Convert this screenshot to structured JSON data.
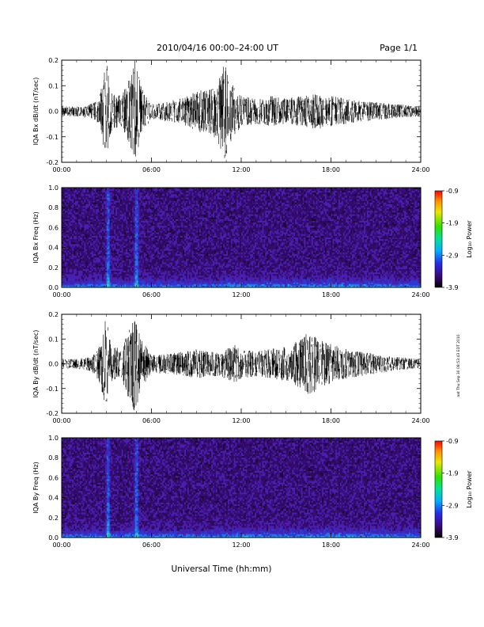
{
  "header": {
    "title": "2010/04/16  00:00–24:00 UT",
    "page": "Page 1/1"
  },
  "footer": {
    "xlabel": "Universal Time (hh:mm)"
  },
  "side_note": "aat Thu Sep 30 08:53:43 EDT 2010",
  "colorbar": {
    "label": "Log₁₀ Power",
    "ticks": [
      "-0.9",
      "-1.9",
      "-2.9",
      "-3.9"
    ],
    "range": [
      -3.9,
      -0.9
    ]
  },
  "colors": {
    "waveform": "#000000",
    "background": "#2c0a5c"
  },
  "chart_data": [
    {
      "type": "line",
      "title": "",
      "ylabel": "IQA Bx dB/dt (nT/sec)",
      "xlabel": "",
      "xlim": [
        0,
        24
      ],
      "ylim": [
        -0.2,
        0.2
      ],
      "x_ticks": [
        "00:00",
        "06:00",
        "12:00",
        "18:00",
        "24:00"
      ],
      "y_ticks": [
        "0.2",
        "0.1",
        "0.0",
        "-0.1",
        "-0.2"
      ],
      "series": [
        {
          "x_hours": [
            0,
            1,
            2,
            2.5,
            3,
            3.3,
            4,
            4.5,
            4.9,
            5.3,
            6,
            7,
            8,
            9,
            10,
            10.5,
            10.9,
            11.2,
            11.6,
            12,
            13,
            14,
            15,
            16,
            17,
            18,
            19,
            20,
            21,
            22,
            23,
            24
          ],
          "amplitude": [
            0.02,
            0.02,
            0.03,
            0.05,
            0.2,
            0.08,
            0.06,
            0.13,
            0.2,
            0.1,
            0.03,
            0.04,
            0.05,
            0.08,
            0.09,
            0.13,
            0.2,
            0.13,
            0.09,
            0.06,
            0.05,
            0.06,
            0.05,
            0.06,
            0.07,
            0.06,
            0.05,
            0.04,
            0.035,
            0.03,
            0.025,
            0.02
          ]
        }
      ]
    },
    {
      "type": "heatmap",
      "title": "",
      "ylabel": "IQA Bx Freq (Hz)",
      "xlabel": "",
      "xlim": [
        0,
        24
      ],
      "ylim": [
        0.0,
        1.0
      ],
      "x_ticks": [
        "00:00",
        "06:00",
        "12:00",
        "18:00",
        "24:00"
      ],
      "y_ticks": [
        "1.0",
        "0.8",
        "0.6",
        "0.4",
        "0.2",
        "0.0"
      ],
      "colorbar_range": [
        -3.9,
        -0.9
      ],
      "bright_times_hours": [
        3.1,
        5.0
      ]
    },
    {
      "type": "line",
      "title": "",
      "ylabel": "IQA By dB/dt (nT/sec)",
      "xlabel": "",
      "xlim": [
        0,
        24
      ],
      "ylim": [
        -0.2,
        0.2
      ],
      "x_ticks": [
        "00:00",
        "06:00",
        "12:00",
        "18:00",
        "24:00"
      ],
      "y_ticks": [
        "0.2",
        "0.1",
        "0.0",
        "-0.1",
        "-0.2"
      ],
      "series": [
        {
          "x_hours": [
            0,
            1,
            2,
            2.5,
            3,
            3.3,
            4,
            4.5,
            4.9,
            5.3,
            6,
            7,
            8,
            9,
            10,
            10.5,
            11,
            11.5,
            12,
            13,
            14,
            15,
            16,
            16.5,
            17,
            18,
            19,
            20,
            21,
            22,
            23,
            24
          ],
          "amplitude": [
            0.02,
            0.02,
            0.03,
            0.07,
            0.2,
            0.08,
            0.06,
            0.15,
            0.2,
            0.1,
            0.04,
            0.04,
            0.05,
            0.06,
            0.05,
            0.05,
            0.06,
            0.08,
            0.06,
            0.05,
            0.06,
            0.07,
            0.1,
            0.13,
            0.11,
            0.08,
            0.06,
            0.05,
            0.04,
            0.03,
            0.025,
            0.02
          ]
        }
      ]
    },
    {
      "type": "heatmap",
      "title": "",
      "ylabel": "IQA By Freq (Hz)",
      "xlabel": "",
      "xlim": [
        0,
        24
      ],
      "ylim": [
        0.0,
        1.0
      ],
      "x_ticks": [
        "00:00",
        "06:00",
        "12:00",
        "18:00",
        "24:00"
      ],
      "y_ticks": [
        "1.0",
        "0.8",
        "0.6",
        "0.4",
        "0.2",
        "0.0"
      ],
      "colorbar_range": [
        -3.9,
        -0.9
      ],
      "bright_times_hours": [
        3.1,
        5.0
      ]
    }
  ]
}
